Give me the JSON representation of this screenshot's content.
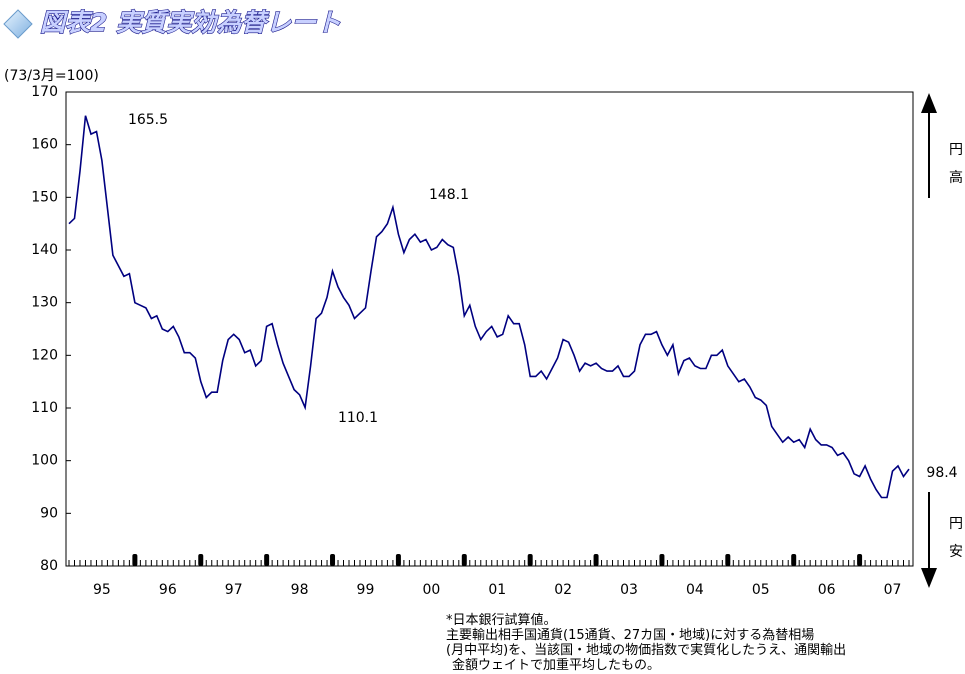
{
  "title": "図表2 実質実効為替レート",
  "chart_data": {
    "type": "line",
    "unit_label": "(73/3月=100)",
    "ylim": [
      80,
      170
    ],
    "yticks": [
      80,
      90,
      100,
      110,
      120,
      130,
      140,
      150,
      160,
      170
    ],
    "categories": [
      null,
      null,
      null,
      null,
      null,
      null,
      "95",
      null,
      null,
      null,
      null,
      null,
      null,
      null,
      null,
      null,
      null,
      null,
      "96",
      null,
      null,
      null,
      null,
      null,
      null,
      null,
      null,
      null,
      null,
      null,
      "97",
      null,
      null,
      null,
      null,
      null,
      null,
      null,
      null,
      null,
      null,
      null,
      "98",
      null,
      null,
      null,
      null,
      null,
      null,
      null,
      null,
      null,
      null,
      null,
      "99",
      null,
      null,
      null,
      null,
      null,
      null,
      null,
      null,
      null,
      null,
      null,
      "00",
      null,
      null,
      null,
      null,
      null,
      null,
      null,
      null,
      null,
      null,
      null,
      "01",
      null,
      null,
      null,
      null,
      null,
      null,
      null,
      null,
      null,
      null,
      null,
      "02",
      null,
      null,
      null,
      null,
      null,
      null,
      null,
      null,
      null,
      null,
      null,
      "03",
      null,
      null,
      null,
      null,
      null,
      null,
      null,
      null,
      null,
      null,
      null,
      "04",
      null,
      null,
      null,
      null,
      null,
      null,
      null,
      null,
      null,
      null,
      null,
      "05",
      null,
      null,
      null,
      null,
      null,
      null,
      null,
      null,
      null,
      null,
      null,
      "06",
      null,
      null,
      null,
      null,
      null,
      null,
      null,
      null,
      null,
      null,
      null,
      "07",
      null,
      null,
      null
    ],
    "series": [
      {
        "color": "#000080",
        "values": [
          145,
          146,
          155,
          165.5,
          162,
          162.5,
          157,
          148,
          139,
          137,
          135,
          135.5,
          130,
          129.5,
          129,
          127,
          127.5,
          125,
          124.5,
          125.5,
          123.5,
          120.5,
          120.5,
          119.5,
          115,
          112,
          113,
          113,
          119,
          123,
          124,
          123,
          120.5,
          121,
          118,
          119,
          125.5,
          126,
          122,
          118.5,
          116,
          113.5,
          112.5,
          110.1,
          118,
          127,
          128,
          131,
          136,
          133,
          131,
          129.5,
          127,
          128,
          129,
          136,
          142.5,
          143.5,
          145,
          148.1,
          143,
          139.5,
          142,
          143,
          141.5,
          142,
          140,
          140.5,
          142,
          141,
          140.5,
          135,
          127.5,
          129.5,
          125.5,
          123,
          124.5,
          125.5,
          123.5,
          124,
          127.5,
          126,
          126,
          122,
          116,
          116,
          117,
          115.5,
          117.5,
          119.5,
          123,
          122.5,
          120,
          117,
          118.5,
          118,
          118.5,
          117.5,
          117,
          117,
          118,
          116,
          116,
          117,
          122,
          124,
          124,
          124.5,
          122,
          120,
          122,
          116.5,
          119,
          119.5,
          118,
          117.5,
          117.5,
          120,
          120,
          121,
          118,
          116.5,
          115,
          115.5,
          114,
          112,
          111.5,
          110.5,
          106.5,
          105,
          103.5,
          104.5,
          103.5,
          104,
          102.5,
          106,
          104,
          103,
          103,
          102.5,
          101,
          101.5,
          100,
          97.5,
          97,
          99,
          96.5,
          94.5,
          93,
          93,
          98,
          99,
          97,
          98.4
        ]
      }
    ],
    "annotations": [
      "165.5",
      "148.1",
      "110.1",
      "98.4"
    ],
    "right_labels": {
      "up": [
        "円",
        "高"
      ],
      "down": [
        "円",
        "安"
      ]
    }
  },
  "notes": [
    "*日本銀行試算値。",
    "主要輸出相手国通貨(15通貨、27カ国・地域)に対する為替相場",
    "(月中平均)を、当該国・地域の物価指数で実質化したうえ、通関輸出",
    "金額ウェイトで加重平均したもの。"
  ]
}
